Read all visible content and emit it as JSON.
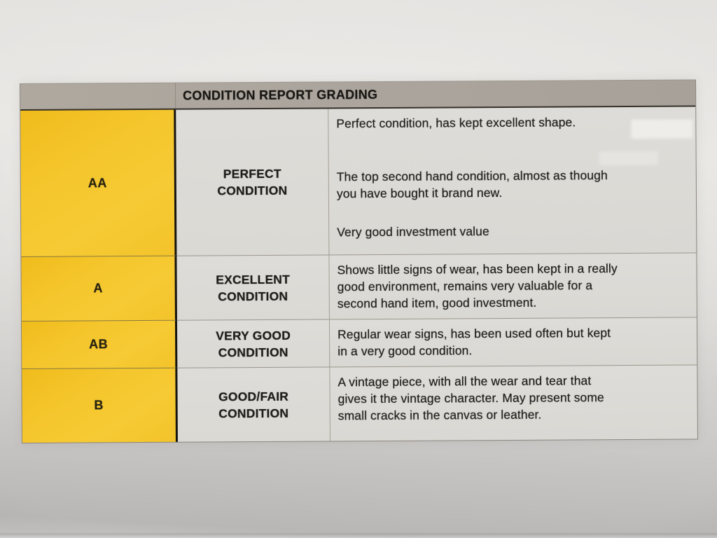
{
  "table": {
    "title": "CONDITION REPORT GRADING",
    "colors": {
      "grade_yellow": "#f5c62d",
      "header_gray": "#aba59d",
      "cell_gray": "#dddbd7",
      "text": "#1d1b18",
      "heavy_border": "#17140f"
    },
    "rows": [
      {
        "grade": "AA",
        "condition": "PERFECT\nCONDITION",
        "paragraphs": [
          "Perfect condition, has kept excellent shape.",
          "The top second hand condition, almost as though\nyou have bought it brand new.",
          "Very good investment value"
        ]
      },
      {
        "grade": "A",
        "condition": "EXCELLENT\nCONDITION",
        "paragraphs": [
          "Shows little signs of wear, has been kept in a really\ngood environment, remains very valuable for a\nsecond hand item, good investment."
        ]
      },
      {
        "grade": "AB",
        "condition": "VERY GOOD\nCONDITION",
        "paragraphs": [
          "Regular wear signs, has been used often but kept\nin a very good condition."
        ]
      },
      {
        "grade": "B",
        "condition": "GOOD/FAIR\nCONDITION",
        "paragraphs": [
          "A vintage piece, with all the wear and tear that\ngives it the vintage character. May present some\nsmall cracks in the canvas or leather."
        ]
      }
    ]
  }
}
